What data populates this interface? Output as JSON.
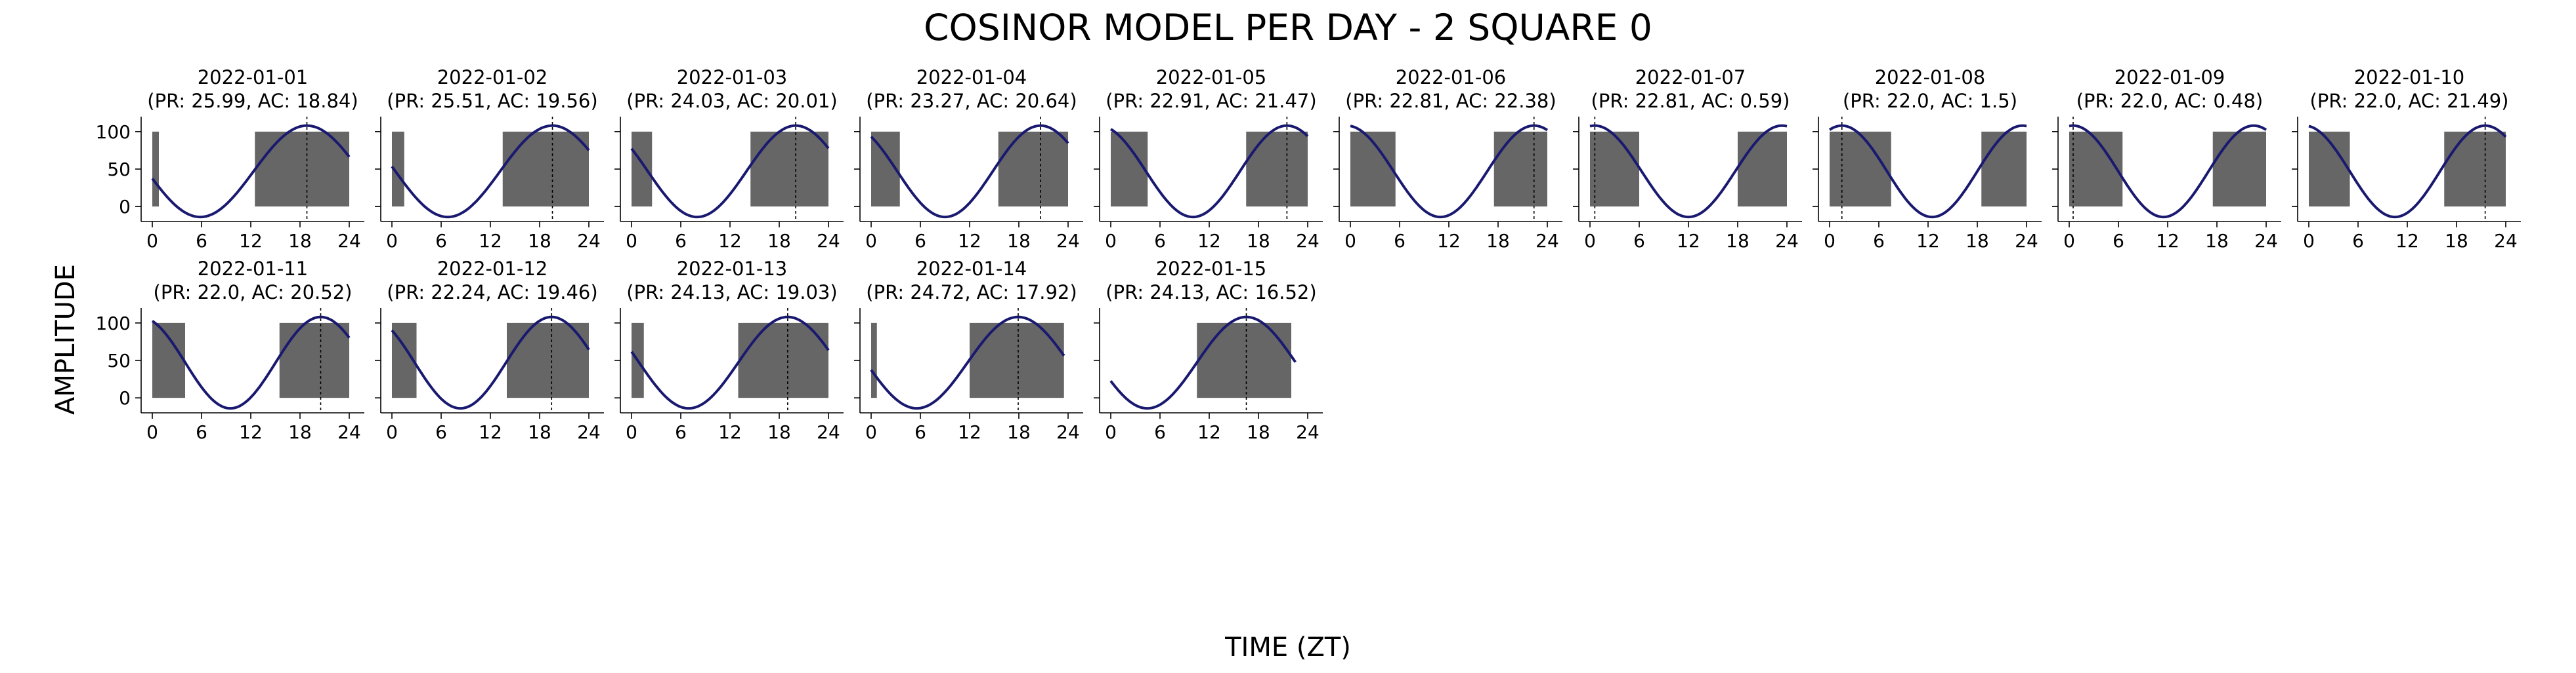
{
  "figure": {
    "title": "COSINOR MODEL PER DAY - 2 SQUARE 0",
    "xlabel": "TIME (ZT)",
    "ylabel": "AMPLITUDE"
  },
  "chart_data": {
    "type": "line",
    "title": "COSINOR MODEL PER DAY - 2 SQUARE 0",
    "xlabel": "TIME (ZT)",
    "ylabel": "AMPLITUDE",
    "xlim": [
      0,
      24
    ],
    "ylim": [
      -20,
      120
    ],
    "x_ticks": [
      0,
      6,
      12,
      18,
      24
    ],
    "y_ticks": [
      0,
      50,
      100
    ],
    "colors": {
      "curve": "#191970",
      "bars": "#666666",
      "acrophase_line": "#000000"
    },
    "layout": "2 rows x 10 columns of small panels",
    "panels": [
      {
        "date": "2022-01-01",
        "subtitle": "(PR: 25.99, AC: 18.84)",
        "acrophase": 18.84,
        "bars": [
          [
            0,
            0.8
          ],
          [
            12.5,
            24
          ]
        ],
        "mesor": 47,
        "amplitude": 61,
        "period": 25.99,
        "xmax": 24
      },
      {
        "date": "2022-01-02",
        "subtitle": "(PR: 25.51, AC: 19.56)",
        "acrophase": 19.56,
        "bars": [
          [
            0,
            1.5
          ],
          [
            13.5,
            24
          ]
        ],
        "mesor": 47,
        "amplitude": 61,
        "period": 25.51,
        "xmax": 24
      },
      {
        "date": "2022-01-03",
        "subtitle": "(PR: 24.03, AC: 20.01)",
        "acrophase": 20.01,
        "bars": [
          [
            0,
            2.5
          ],
          [
            14.5,
            24
          ]
        ],
        "mesor": 47,
        "amplitude": 61,
        "period": 24.03,
        "xmax": 24
      },
      {
        "date": "2022-01-04",
        "subtitle": "(PR: 23.27, AC: 20.64)",
        "acrophase": 20.64,
        "bars": [
          [
            0,
            3.5
          ],
          [
            15.5,
            24
          ]
        ],
        "mesor": 47,
        "amplitude": 61,
        "period": 23.27,
        "xmax": 24
      },
      {
        "date": "2022-01-05",
        "subtitle": "(PR: 22.91, AC: 21.47)",
        "acrophase": 21.47,
        "bars": [
          [
            0,
            4.5
          ],
          [
            16.5,
            24
          ]
        ],
        "mesor": 47,
        "amplitude": 61,
        "period": 22.91,
        "xmax": 24
      },
      {
        "date": "2022-01-06",
        "subtitle": "(PR: 22.81, AC: 22.38)",
        "acrophase": 22.38,
        "bars": [
          [
            0,
            5.5
          ],
          [
            17.5,
            24
          ]
        ],
        "mesor": 47,
        "amplitude": 61,
        "period": 22.81,
        "xmax": 24
      },
      {
        "date": "2022-01-07",
        "subtitle": "(PR: 22.81, AC: 0.59)",
        "acrophase": 0.59,
        "bars": [
          [
            0,
            6
          ],
          [
            18,
            24
          ]
        ],
        "mesor": 47,
        "amplitude": 61,
        "period": 22.81,
        "xmax": 24
      },
      {
        "date": "2022-01-08",
        "subtitle": "(PR: 22.0, AC: 1.5)",
        "acrophase": 1.5,
        "bars": [
          [
            0,
            7.5
          ],
          [
            18.5,
            24
          ]
        ],
        "mesor": 47,
        "amplitude": 61,
        "period": 22.0,
        "xmax": 24
      },
      {
        "date": "2022-01-09",
        "subtitle": "(PR: 22.0, AC: 0.48)",
        "acrophase": 0.48,
        "bars": [
          [
            0,
            6.5
          ],
          [
            17.5,
            24
          ]
        ],
        "mesor": 47,
        "amplitude": 61,
        "period": 22.0,
        "xmax": 24
      },
      {
        "date": "2022-01-10",
        "subtitle": "(PR: 22.0, AC: 21.49)",
        "acrophase": 21.49,
        "bars": [
          [
            0,
            5
          ],
          [
            16.5,
            24
          ]
        ],
        "mesor": 47,
        "amplitude": 61,
        "period": 22.0,
        "xmax": 24
      },
      {
        "date": "2022-01-11",
        "subtitle": "(PR: 22.0, AC: 20.52)",
        "acrophase": 20.52,
        "bars": [
          [
            0,
            4
          ],
          [
            15.5,
            24
          ]
        ],
        "mesor": 47,
        "amplitude": 61,
        "period": 22.0,
        "xmax": 24
      },
      {
        "date": "2022-01-12",
        "subtitle": "(PR: 22.24, AC: 19.46)",
        "acrophase": 19.46,
        "bars": [
          [
            0,
            3
          ],
          [
            14,
            24
          ]
        ],
        "mesor": 47,
        "amplitude": 61,
        "period": 22.24,
        "xmax": 24
      },
      {
        "date": "2022-01-13",
        "subtitle": "(PR: 24.13, AC: 19.03)",
        "acrophase": 19.03,
        "bars": [
          [
            0,
            1.5
          ],
          [
            13,
            24
          ]
        ],
        "mesor": 47,
        "amplitude": 61,
        "period": 24.13,
        "xmax": 24
      },
      {
        "date": "2022-01-14",
        "subtitle": "(PR: 24.72, AC: 17.92)",
        "acrophase": 17.92,
        "bars": [
          [
            0,
            0.7
          ],
          [
            12,
            23.5
          ]
        ],
        "mesor": 47,
        "amplitude": 61,
        "period": 24.72,
        "xmax": 23.5
      },
      {
        "date": "2022-01-15",
        "subtitle": "(PR: 24.13, AC: 16.52)",
        "acrophase": 16.52,
        "bars": [
          [
            10.5,
            22
          ]
        ],
        "mesor": 47,
        "amplitude": 61,
        "period": 24.13,
        "xmax": 22.5
      }
    ]
  }
}
